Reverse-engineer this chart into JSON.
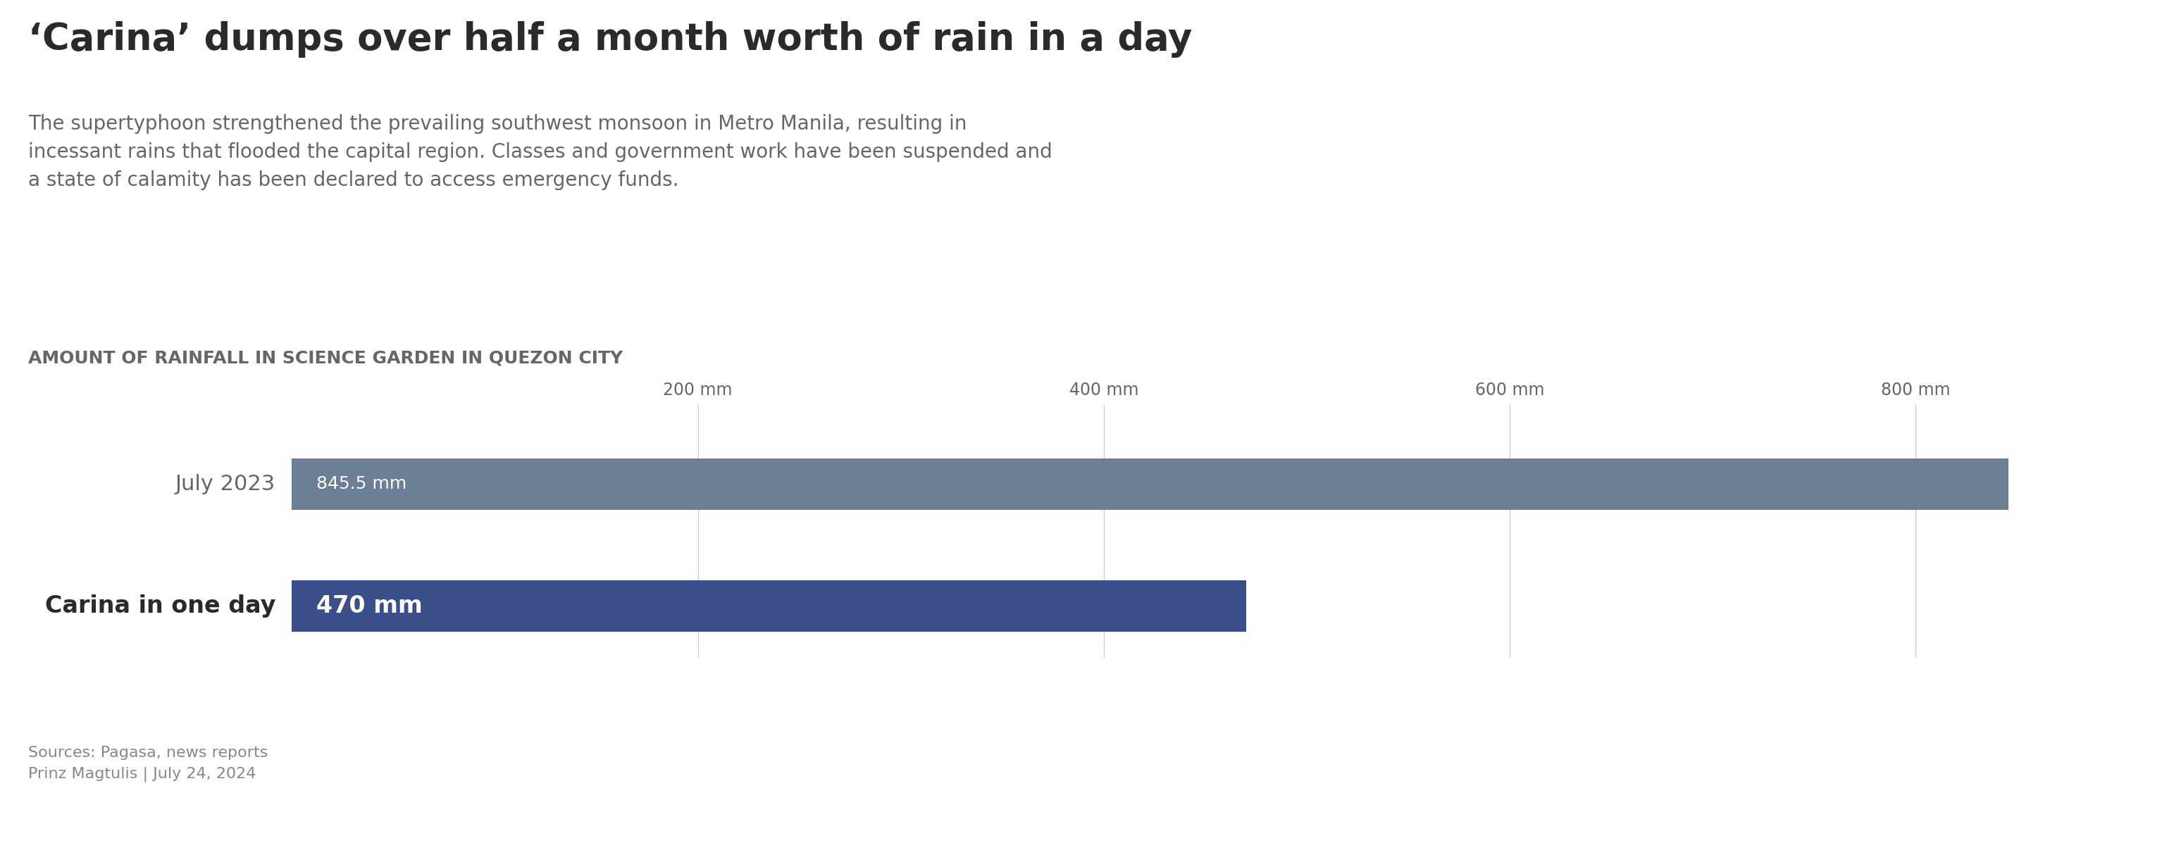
{
  "title": "‘Carina’ dumps over half a month worth of rain in a day",
  "subtitle": "The supertyphoon strengthened the prevailing southwest monsoon in Metro Manila, resulting in\nincessant rains that flooded the capital region. Classes and government work have been suspended and\na state of calamity has been declared to access emergency funds.",
  "section_label": "AMOUNT OF RAINFALL IN SCIENCE GARDEN IN QUEZON CITY",
  "categories": [
    "July 2023",
    "Carina in one day"
  ],
  "values": [
    845.5,
    470
  ],
  "labels": [
    "845.5 mm",
    "470 mm"
  ],
  "bar_colors": [
    "#6b7f96",
    "#3a4f8a"
  ],
  "xlim": [
    0,
    900
  ],
  "xticks": [
    200,
    400,
    600,
    800
  ],
  "xtick_labels": [
    "200 mm",
    "400 mm",
    "600 mm",
    "800 mm"
  ],
  "source_text": "Sources: Pagasa, news reports\nPrinz Magtulis | July 24, 2024",
  "background_color": "#ffffff",
  "title_color": "#2a2a2a",
  "subtitle_color": "#666666",
  "section_label_color": "#666666",
  "bar_label_color": "#ffffff",
  "ytick_color_0": "#666666",
  "ytick_color_1": "#2a2a2a",
  "source_color": "#888888",
  "gridline_color": "#cccccc",
  "title_fontsize": 38,
  "subtitle_fontsize": 20,
  "section_label_fontsize": 18,
  "bar_label_fontsize_0": 18,
  "bar_label_fontsize_1": 24,
  "ytick_fontsize_0": 22,
  "ytick_fontsize_1": 24,
  "xtick_fontsize": 17,
  "source_fontsize": 16,
  "bar_height": 0.42
}
